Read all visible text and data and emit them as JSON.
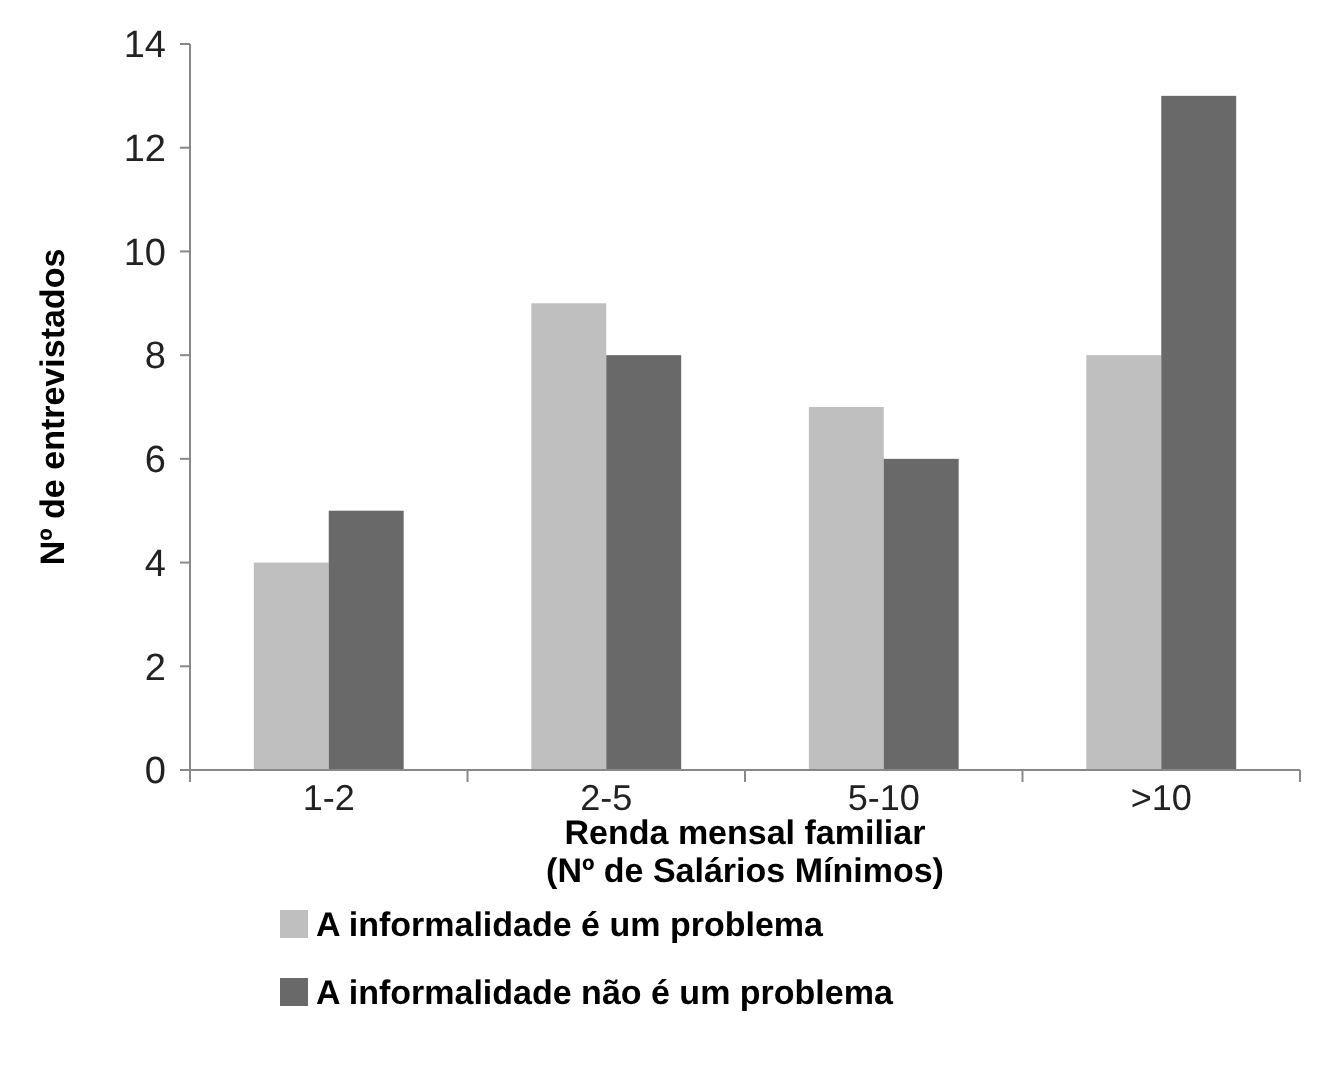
{
  "chart_data": {
    "type": "bar",
    "xlabel": "Renda mensal familiar\n(Nº de Salários Mínimos)",
    "ylabel": "Nº de entrevistados",
    "categories": [
      "1-2",
      "2-5",
      "5-10",
      ">10"
    ],
    "series": [
      {
        "name": "A informalidade é um problema",
        "color": "#bfbfbf",
        "values": [
          4,
          9,
          7,
          8
        ]
      },
      {
        "name": "A informalidade não é um problema",
        "color": "#696969",
        "values": [
          5,
          8,
          6,
          13
        ]
      }
    ],
    "ylim": [
      0,
      14
    ],
    "yticks": [
      0,
      2,
      4,
      6,
      8,
      10,
      12,
      14
    ],
    "grid": false,
    "legend": "bottom"
  }
}
